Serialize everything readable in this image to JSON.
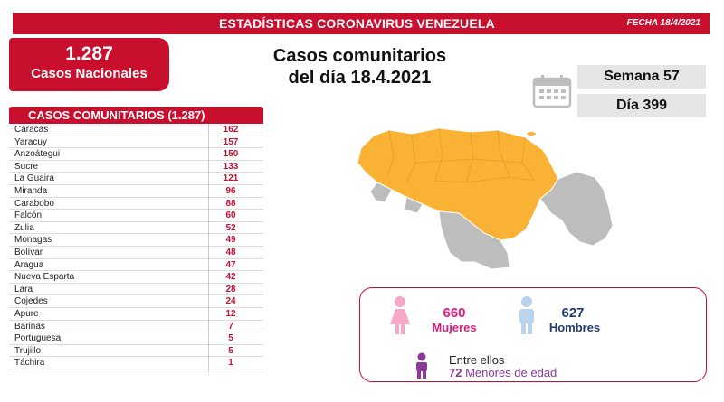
{
  "header": {
    "title": "ESTADÍSTICAS CORONAVIRUS VENEZUELA",
    "date": "FECHA 18/4/2021"
  },
  "national": {
    "number": "1.287",
    "label": "Casos Nacionales"
  },
  "headline": {
    "line1": "Casos comunitarios",
    "line2": "del día 18.4.2021"
  },
  "calendar": {
    "week": "Semana 57",
    "day": "Día 399"
  },
  "cases_table": {
    "title": "CASOS COMUNITARIOS (1.287)",
    "rows": [
      {
        "state": "Caracas",
        "count": "162"
      },
      {
        "state": "Yaracuy",
        "count": "157"
      },
      {
        "state": "Anzoátegui",
        "count": "150"
      },
      {
        "state": "Sucre",
        "count": "133"
      },
      {
        "state": "La Guaira",
        "count": "121"
      },
      {
        "state": "Miranda",
        "count": "96"
      },
      {
        "state": "Carabobo",
        "count": "88"
      },
      {
        "state": "Falcón",
        "count": "60"
      },
      {
        "state": "Zulia",
        "count": "52"
      },
      {
        "state": "Monagas",
        "count": "49"
      },
      {
        "state": "Bolívar",
        "count": "48"
      },
      {
        "state": "Aragua",
        "count": "47"
      },
      {
        "state": "Nueva Esparta",
        "count": "42"
      },
      {
        "state": "Lara",
        "count": "28"
      },
      {
        "state": "Cojedes",
        "count": "24"
      },
      {
        "state": "Apure",
        "count": "12"
      },
      {
        "state": "Barinas",
        "count": "7"
      },
      {
        "state": "Portuguesa",
        "count": "5"
      },
      {
        "state": "Trujillo",
        "count": "5"
      },
      {
        "state": "Táchira",
        "count": "1"
      }
    ]
  },
  "gender": {
    "women_number": "660",
    "women_label": "Mujeres",
    "men_number": "627",
    "men_label": "Hombres",
    "minors_intro": "Entre ellos",
    "minors_count": "72",
    "minors_label": "Menores de edad"
  },
  "colors": {
    "brand_red": "#c8102e",
    "map_affected": "#f9b233",
    "map_unaffected": "#bdbdbd",
    "women": "#e0197d",
    "men": "#1f3b73",
    "minors": "#8a3b96"
  },
  "icons": {
    "calendar": "calendar-icon",
    "women": "female-person-icon",
    "men": "male-person-icon",
    "minors": "child-person-icon"
  }
}
